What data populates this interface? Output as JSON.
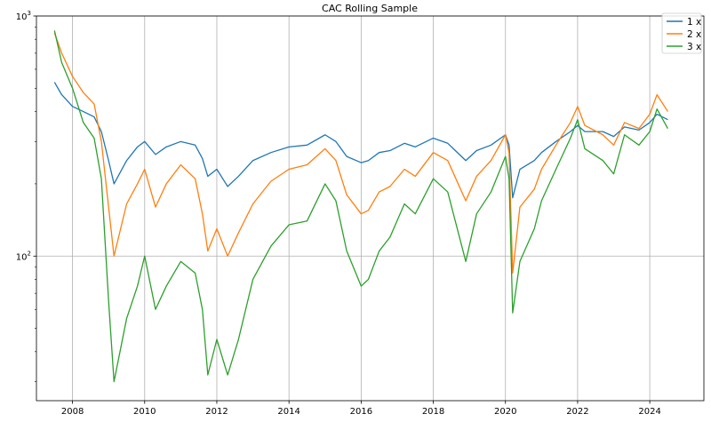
{
  "chart_data": {
    "type": "line",
    "title": "CAC Rolling Sample",
    "xlabel": "",
    "ylabel": "",
    "xlim": [
      2007.0,
      2025.5
    ],
    "ylim": [
      25,
      1000
    ],
    "yscale": "log",
    "grid": true,
    "legend_position": "top-right",
    "x_ticks": [
      2008,
      2010,
      2012,
      2014,
      2016,
      2018,
      2020,
      2022,
      2024
    ],
    "x_tick_labels": [
      "2008",
      "2010",
      "2012",
      "2014",
      "2016",
      "2018",
      "2020",
      "2022",
      "2024"
    ],
    "y_ticks": [
      100,
      1000
    ],
    "y_tick_labels": [
      {
        "base": "10",
        "exp": "2"
      },
      {
        "base": "10",
        "exp": "3"
      }
    ],
    "series": [
      {
        "name": "1 x",
        "color": "#1f77b4",
        "x": [
          2007.5,
          2007.7,
          2008.0,
          2008.3,
          2008.6,
          2008.8,
          2009.0,
          2009.15,
          2009.5,
          2009.8,
          2010.0,
          2010.3,
          2010.6,
          2011.0,
          2011.4,
          2011.6,
          2011.75,
          2012.0,
          2012.3,
          2012.6,
          2013.0,
          2013.5,
          2014.0,
          2014.5,
          2015.0,
          2015.3,
          2015.6,
          2016.0,
          2016.2,
          2016.5,
          2016.8,
          2017.2,
          2017.5,
          2018.0,
          2018.4,
          2018.9,
          2019.2,
          2019.6,
          2020.0,
          2020.1,
          2020.2,
          2020.4,
          2020.8,
          2021.0,
          2021.4,
          2021.8,
          2022.0,
          2022.2,
          2022.7,
          2023.0,
          2023.3,
          2023.7,
          2024.0,
          2024.2,
          2024.5
        ],
        "values": [
          530,
          470,
          420,
          400,
          380,
          330,
          250,
          200,
          250,
          285,
          300,
          265,
          285,
          300,
          290,
          255,
          215,
          230,
          195,
          215,
          250,
          270,
          285,
          290,
          320,
          300,
          260,
          245,
          250,
          270,
          275,
          295,
          285,
          310,
          295,
          250,
          275,
          290,
          320,
          290,
          175,
          230,
          250,
          270,
          300,
          330,
          350,
          330,
          330,
          315,
          345,
          335,
          360,
          390,
          370
        ]
      },
      {
        "name": "2 x",
        "color": "#ff7f0e",
        "x": [
          2007.5,
          2007.7,
          2008.0,
          2008.3,
          2008.6,
          2008.8,
          2009.0,
          2009.15,
          2009.5,
          2009.8,
          2010.0,
          2010.3,
          2010.6,
          2011.0,
          2011.4,
          2011.6,
          2011.75,
          2012.0,
          2012.3,
          2012.6,
          2013.0,
          2013.5,
          2014.0,
          2014.5,
          2015.0,
          2015.3,
          2015.6,
          2016.0,
          2016.2,
          2016.5,
          2016.8,
          2017.2,
          2017.5,
          2018.0,
          2018.4,
          2018.9,
          2019.2,
          2019.6,
          2020.0,
          2020.1,
          2020.2,
          2020.4,
          2020.8,
          2021.0,
          2021.4,
          2021.8,
          2022.0,
          2022.2,
          2022.7,
          2023.0,
          2023.3,
          2023.7,
          2024.0,
          2024.2,
          2024.5
        ],
        "values": [
          850,
          700,
          560,
          480,
          430,
          300,
          160,
          100,
          165,
          200,
          230,
          160,
          200,
          240,
          210,
          150,
          105,
          130,
          100,
          125,
          165,
          205,
          230,
          240,
          280,
          250,
          180,
          150,
          155,
          185,
          195,
          230,
          215,
          270,
          250,
          170,
          215,
          250,
          320,
          270,
          85,
          160,
          190,
          230,
          290,
          360,
          420,
          350,
          320,
          290,
          360,
          340,
          390,
          470,
          400
        ]
      },
      {
        "name": "3 x",
        "color": "#2ca02c",
        "x": [
          2007.5,
          2007.7,
          2008.0,
          2008.3,
          2008.6,
          2008.8,
          2009.0,
          2009.15,
          2009.5,
          2009.8,
          2010.0,
          2010.3,
          2010.6,
          2011.0,
          2011.4,
          2011.6,
          2011.75,
          2012.0,
          2012.3,
          2012.6,
          2013.0,
          2013.5,
          2014.0,
          2014.5,
          2015.0,
          2015.3,
          2015.6,
          2016.0,
          2016.2,
          2016.5,
          2016.8,
          2017.2,
          2017.5,
          2018.0,
          2018.4,
          2018.9,
          2019.2,
          2019.6,
          2020.0,
          2020.1,
          2020.2,
          2020.4,
          2020.8,
          2021.0,
          2021.4,
          2021.8,
          2022.0,
          2022.2,
          2022.7,
          2023.0,
          2023.3,
          2023.7,
          2024.0,
          2024.2,
          2024.5
        ],
        "values": [
          870,
          640,
          500,
          360,
          310,
          210,
          65,
          30,
          55,
          75,
          100,
          60,
          75,
          95,
          85,
          60,
          32,
          45,
          32,
          45,
          80,
          110,
          135,
          140,
          200,
          170,
          105,
          75,
          80,
          105,
          120,
          165,
          150,
          210,
          185,
          95,
          150,
          185,
          260,
          210,
          58,
          95,
          130,
          170,
          230,
          310,
          370,
          280,
          250,
          220,
          320,
          290,
          330,
          410,
          340
        ]
      }
    ]
  }
}
